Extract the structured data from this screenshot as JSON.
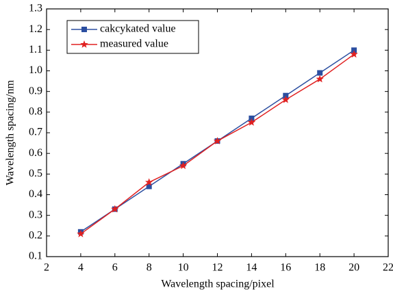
{
  "chart_data": {
    "type": "line",
    "xlabel": "Wavelength spacing/pixel",
    "ylabel": "Wavelength spacing/nm",
    "x": [
      4,
      6,
      8,
      10,
      12,
      14,
      16,
      18,
      20
    ],
    "series": [
      {
        "name": "cakcykated value",
        "color": "#2b4ea0",
        "marker": "square",
        "values": [
          0.22,
          0.33,
          0.44,
          0.55,
          0.66,
          0.77,
          0.88,
          0.99,
          1.1
        ]
      },
      {
        "name": "measured value",
        "color": "#e02020",
        "marker": "star",
        "values": [
          0.21,
          0.33,
          0.46,
          0.54,
          0.66,
          0.75,
          0.86,
          0.96,
          1.08
        ]
      }
    ],
    "xlim": [
      2,
      22
    ],
    "xticks": [
      2,
      4,
      6,
      8,
      10,
      12,
      14,
      16,
      18,
      20,
      22
    ],
    "ylim": [
      0.1,
      1.3
    ],
    "yticks": [
      0.1,
      0.2,
      0.3,
      0.4,
      0.5,
      0.6,
      0.7,
      0.8,
      0.9,
      {
        "value": 1,
        "label": "1.0"
      },
      1.1,
      1.2,
      1.3
    ],
    "legend": "upper left"
  }
}
